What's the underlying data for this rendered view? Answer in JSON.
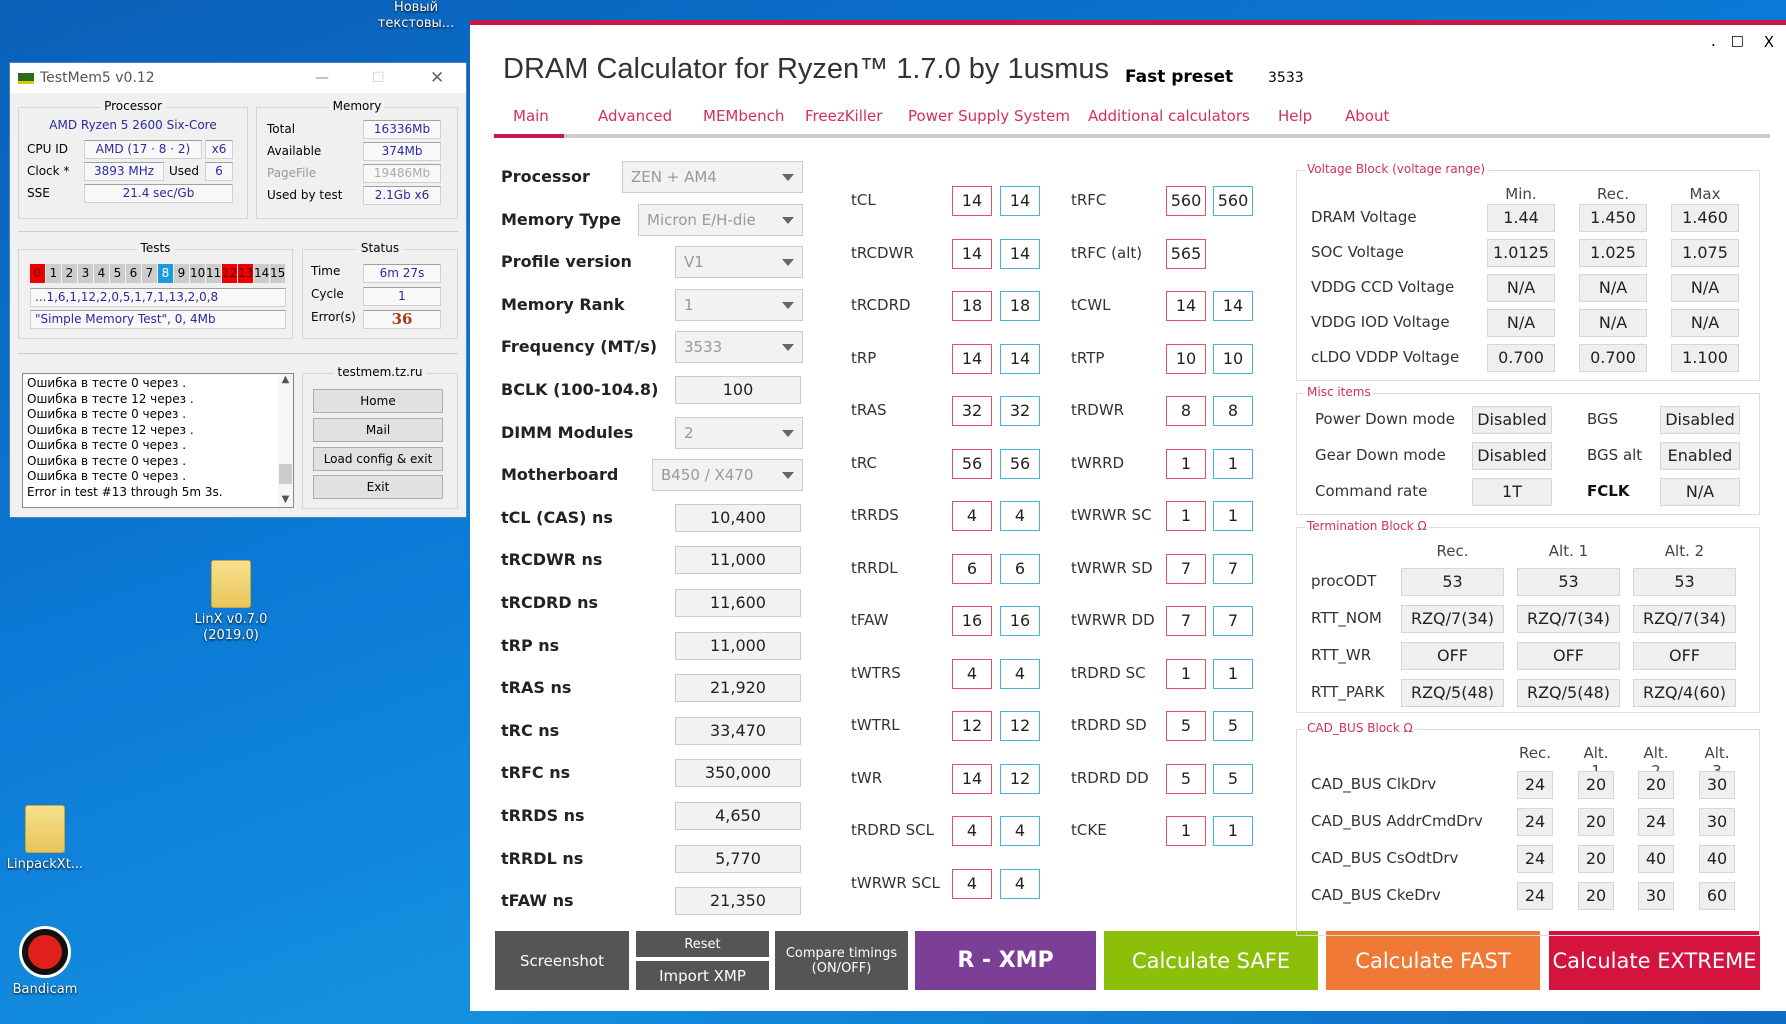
{
  "desktop": {
    "icons": [
      {
        "label": "Новый текстовы..."
      },
      {
        "label": "LinX v0.7.0 (2019.0)"
      },
      {
        "label": "LinpackXt..."
      },
      {
        "label": "Bandicam"
      }
    ]
  },
  "testmem": {
    "title": "TestMem5 v0.12",
    "processor": {
      "heading": "Processor",
      "name": "AMD Ryzen 5 2600 Six-Core",
      "cpuid_label": "CPU ID",
      "cpuid": "AMD  (17 · 8 · 2)",
      "threads": "x6",
      "clock_label": "Clock *",
      "clock": "3893 MHz",
      "used_label": "Used",
      "used": "6",
      "sse_label": "SSE",
      "sse": "21.4 sec/Gb"
    },
    "memory": {
      "heading": "Memory",
      "total_label": "Total",
      "total": "16336Mb",
      "available_label": "Available",
      "available": "374Mb",
      "pagefile_label": "PageFile",
      "pagefile": "19486Mb",
      "usedbytest_label": "Used by test",
      "usedbytest": "2.1Gb x6"
    },
    "tests": {
      "heading": "Tests",
      "cells": [
        "0",
        "1",
        "2",
        "3",
        "4",
        "5",
        "6",
        "7",
        "8",
        "9",
        "10",
        "11",
        "12",
        "13",
        "14",
        "15"
      ],
      "failed": [
        "0",
        "12",
        "13"
      ],
      "current": "8",
      "sequence": "...1,6,1,12,2,0,5,1,7,1,13,2,0,8",
      "current_test": "\"Simple Memory Test\", 0, 4Mb"
    },
    "status": {
      "heading": "Status",
      "time_label": "Time",
      "time": "6m 27s",
      "cycle_label": "Cycle",
      "cycle": "1",
      "errors_label": "Error(s)",
      "errors": "36"
    },
    "log": [
      "Ошибка в тесте 0 через .",
      "Ошибка в тесте 12 через .",
      "Ошибка в тесте 0 через .",
      "Ошибка в тесте 12 через .",
      "Ошибка в тесте 0 через .",
      "Ошибка в тесте 0 через .",
      "Ошибка в тесте 0 через .",
      "Error in test #13 through 5m 3s."
    ],
    "site": "testmem.tz.ru",
    "buttons": [
      "Home",
      "Mail",
      "Load config & exit",
      "Exit"
    ]
  },
  "dram": {
    "title": "DRAM Calculator for Ryzen™ 1.7.0 by 1usmus",
    "preset_label": "Fast preset",
    "preset_value": "3533",
    "window_controls": {
      "min": ".",
      "max": "□",
      "close": "X"
    },
    "tabs": [
      "Main",
      "Advanced",
      "MEMbench",
      "FreezKiller",
      "Power Supply System",
      "Additional calculators",
      "Help",
      "About"
    ],
    "active_tab": "Main",
    "form": [
      {
        "label": "Processor",
        "value": "ZEN + AM4",
        "type": "select"
      },
      {
        "label": "Memory Type",
        "value": "Micron E/H-die",
        "type": "select"
      },
      {
        "label": "Profile version",
        "value": "V1",
        "type": "select"
      },
      {
        "label": "Memory Rank",
        "value": "1",
        "type": "select"
      },
      {
        "label": "Frequency (MT/s)",
        "value": "3533",
        "type": "select"
      },
      {
        "label": "BCLK (100-104.8)",
        "value": "100",
        "type": "input"
      },
      {
        "label": "DIMM Modules",
        "value": "2",
        "type": "select"
      },
      {
        "label": "Motherboard",
        "value": "B450 / X470",
        "type": "select"
      },
      {
        "label": "tCL (CAS) ns",
        "value": "10,400",
        "type": "input"
      },
      {
        "label": "tRCDWR ns",
        "value": "11,000",
        "type": "input"
      },
      {
        "label": "tRCDRD ns",
        "value": "11,600",
        "type": "input"
      },
      {
        "label": "tRP ns",
        "value": "11,000",
        "type": "input"
      },
      {
        "label": "tRAS ns",
        "value": "21,920",
        "type": "input"
      },
      {
        "label": "tRC ns",
        "value": "33,470",
        "type": "input"
      },
      {
        "label": "tRFC ns",
        "value": "350,000",
        "type": "input"
      },
      {
        "label": "tRRDS ns",
        "value": "4,650",
        "type": "input"
      },
      {
        "label": "tRRDL ns",
        "value": "5,770",
        "type": "input"
      },
      {
        "label": "tFAW ns",
        "value": "21,350",
        "type": "input"
      }
    ],
    "timings_left": [
      {
        "name": "tCL",
        "a": "14",
        "b": "14"
      },
      {
        "name": "tRCDWR",
        "a": "14",
        "b": "14"
      },
      {
        "name": "tRCDRD",
        "a": "18",
        "b": "18"
      },
      {
        "name": "tRP",
        "a": "14",
        "b": "14"
      },
      {
        "name": "tRAS",
        "a": "32",
        "b": "32"
      },
      {
        "name": "tRC",
        "a": "56",
        "b": "56"
      },
      {
        "name": "tRRDS",
        "a": "4",
        "b": "4"
      },
      {
        "name": "tRRDL",
        "a": "6",
        "b": "6"
      },
      {
        "name": "tFAW",
        "a": "16",
        "b": "16"
      },
      {
        "name": "tWTRS",
        "a": "4",
        "b": "4"
      },
      {
        "name": "tWTRL",
        "a": "12",
        "b": "12"
      },
      {
        "name": "tWR",
        "a": "14",
        "b": "12"
      },
      {
        "name": "tRDRD SCL",
        "a": "4",
        "b": "4"
      },
      {
        "name": "tWRWR SCL",
        "a": "4",
        "b": "4"
      }
    ],
    "timings_right": [
      {
        "name": "tRFC",
        "a": "560",
        "b": "560"
      },
      {
        "name": "tRFC (alt)",
        "a": "565",
        "b": null
      },
      {
        "name": "tCWL",
        "a": "14",
        "b": "14"
      },
      {
        "name": "tRTP",
        "a": "10",
        "b": "10"
      },
      {
        "name": "tRDWR",
        "a": "8",
        "b": "8"
      },
      {
        "name": "tWRRD",
        "a": "1",
        "b": "1"
      },
      {
        "name": "tWRWR SC",
        "a": "1",
        "b": "1"
      },
      {
        "name": "tWRWR SD",
        "a": "7",
        "b": "7"
      },
      {
        "name": "tWRWR DD",
        "a": "7",
        "b": "7"
      },
      {
        "name": "tRDRD SC",
        "a": "1",
        "b": "1"
      },
      {
        "name": "tRDRD SD",
        "a": "5",
        "b": "5"
      },
      {
        "name": "tRDRD DD",
        "a": "5",
        "b": "5"
      },
      {
        "name": "tCKE",
        "a": "1",
        "b": "1"
      }
    ],
    "voltage": {
      "title": "Voltage Block (voltage range)",
      "headers": [
        "Min.",
        "Rec.",
        "Max"
      ],
      "rows": [
        {
          "label": "DRAM Voltage",
          "values": [
            "1.44",
            "1.450",
            "1.460"
          ]
        },
        {
          "label": "SOC Voltage",
          "values": [
            "1.0125",
            "1.025",
            "1.075"
          ]
        },
        {
          "label": "VDDG  CCD Voltage",
          "values": [
            "N/A",
            "N/A",
            "N/A"
          ]
        },
        {
          "label": "VDDG  IOD Voltage",
          "values": [
            "N/A",
            "N/A",
            "N/A"
          ]
        },
        {
          "label": "cLDO VDDP Voltage",
          "values": [
            "0.700",
            "0.700",
            "1.100"
          ]
        }
      ]
    },
    "misc": {
      "title": "Misc items",
      "rows": [
        {
          "label": "Power Down mode",
          "value": "Disabled",
          "label2": "BGS",
          "value2": "Disabled"
        },
        {
          "label": "Gear Down mode",
          "value": "Disabled",
          "label2": "BGS alt",
          "value2": "Enabled"
        },
        {
          "label": "Command rate",
          "value": "1T",
          "label2": "FCLK",
          "value2": "N/A"
        }
      ]
    },
    "termination": {
      "title": "Termination Block Ω",
      "headers": [
        "Rec.",
        "Alt. 1",
        "Alt. 2"
      ],
      "rows": [
        {
          "label": "procODT",
          "values": [
            "53",
            "53",
            "53"
          ]
        },
        {
          "label": "RTT_NOM",
          "values": [
            "RZQ/7(34)",
            "RZQ/7(34)",
            "RZQ/7(34)"
          ]
        },
        {
          "label": "RTT_WR",
          "values": [
            "OFF",
            "OFF",
            "OFF"
          ]
        },
        {
          "label": "RTT_PARK",
          "values": [
            "RZQ/5(48)",
            "RZQ/5(48)",
            "RZQ/4(60)"
          ]
        }
      ]
    },
    "cadbus": {
      "title": "CAD_BUS Block Ω",
      "headers": [
        "Rec.",
        "Alt. 1",
        "Alt. 2",
        "Alt. 3"
      ],
      "rows": [
        {
          "label": "CAD_BUS ClkDrv",
          "values": [
            "24",
            "20",
            "20",
            "30"
          ]
        },
        {
          "label": "CAD_BUS AddrCmdDrv",
          "values": [
            "24",
            "20",
            "24",
            "30"
          ]
        },
        {
          "label": "CAD_BUS CsOdtDrv",
          "values": [
            "24",
            "20",
            "40",
            "40"
          ]
        },
        {
          "label": "CAD_BUS CkeDrv",
          "values": [
            "24",
            "20",
            "30",
            "60"
          ]
        }
      ]
    },
    "buttons": {
      "screenshot": "Screenshot",
      "reset": "Reset",
      "import_xmp": "Import XMP",
      "compare": "Compare timings (ON/OFF)",
      "rxmp": "R - XMP",
      "safe": "Calculate SAFE",
      "fast": "Calculate FAST",
      "extreme": "Calculate EXTREME"
    },
    "colors": {
      "accent": "#c8184a",
      "rxmp": "#7b3f98",
      "safe": "#8cbf0a",
      "fast": "#f07a35",
      "extreme": "#d4143f",
      "gray": "#555555"
    }
  }
}
